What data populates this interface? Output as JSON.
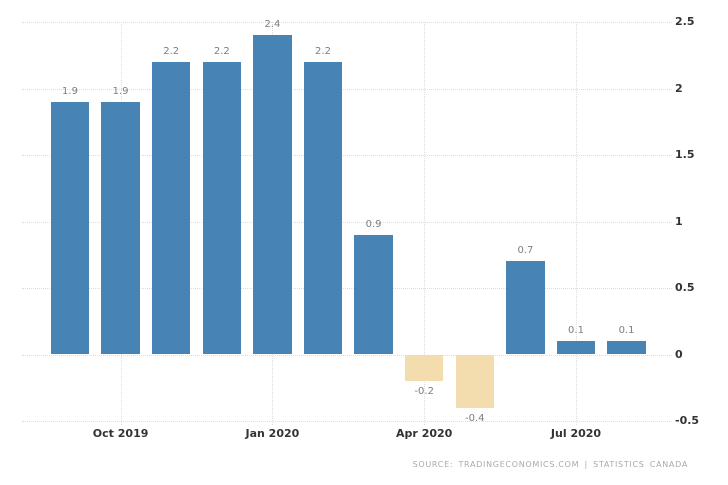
{
  "chart_data": {
    "type": "bar",
    "title": "",
    "xlabel": "",
    "ylabel": "",
    "values": [
      1.9,
      1.9,
      2.2,
      2.2,
      2.4,
      2.2,
      0.9,
      -0.2,
      -0.4,
      0.7,
      0.1,
      0.1
    ],
    "bar_labels": [
      "1.9",
      "1.9",
      "2.2",
      "2.2",
      "2.4",
      "2.2",
      "0.9",
      "-0.2",
      "-0.4",
      "0.7",
      "0.1",
      "0.1"
    ],
    "x_ticks": [
      {
        "bar_index": 1,
        "label": "Oct 2019"
      },
      {
        "bar_index": 4,
        "label": "Jan 2020"
      },
      {
        "bar_index": 7,
        "label": "Apr 2020"
      },
      {
        "bar_index": 10,
        "label": "Jul 2020"
      }
    ],
    "y_ticks": [
      {
        "value": 2.5,
        "label": "2.5"
      },
      {
        "value": 2,
        "label": "2"
      },
      {
        "value": 1.5,
        "label": "1.5"
      },
      {
        "value": 1,
        "label": "1"
      },
      {
        "value": 0.5,
        "label": "0.5"
      },
      {
        "value": 0,
        "label": "0"
      },
      {
        "value": -0.5,
        "label": "-0.5"
      }
    ],
    "ylim": [
      -0.5,
      2.5
    ],
    "grid": true,
    "legend": "none",
    "colors": {
      "positive_bar": "#4783b5",
      "negative_bar": "#f3ddae",
      "gridline": "#dcdcdc",
      "bar_value_label": "#7d7d7d",
      "axis_label": "#333333",
      "source_text": "#a9a9a9"
    }
  },
  "source": {
    "text": "SOURCE: TRADINGECONOMICS.COM | STATISTICS CANADA"
  }
}
